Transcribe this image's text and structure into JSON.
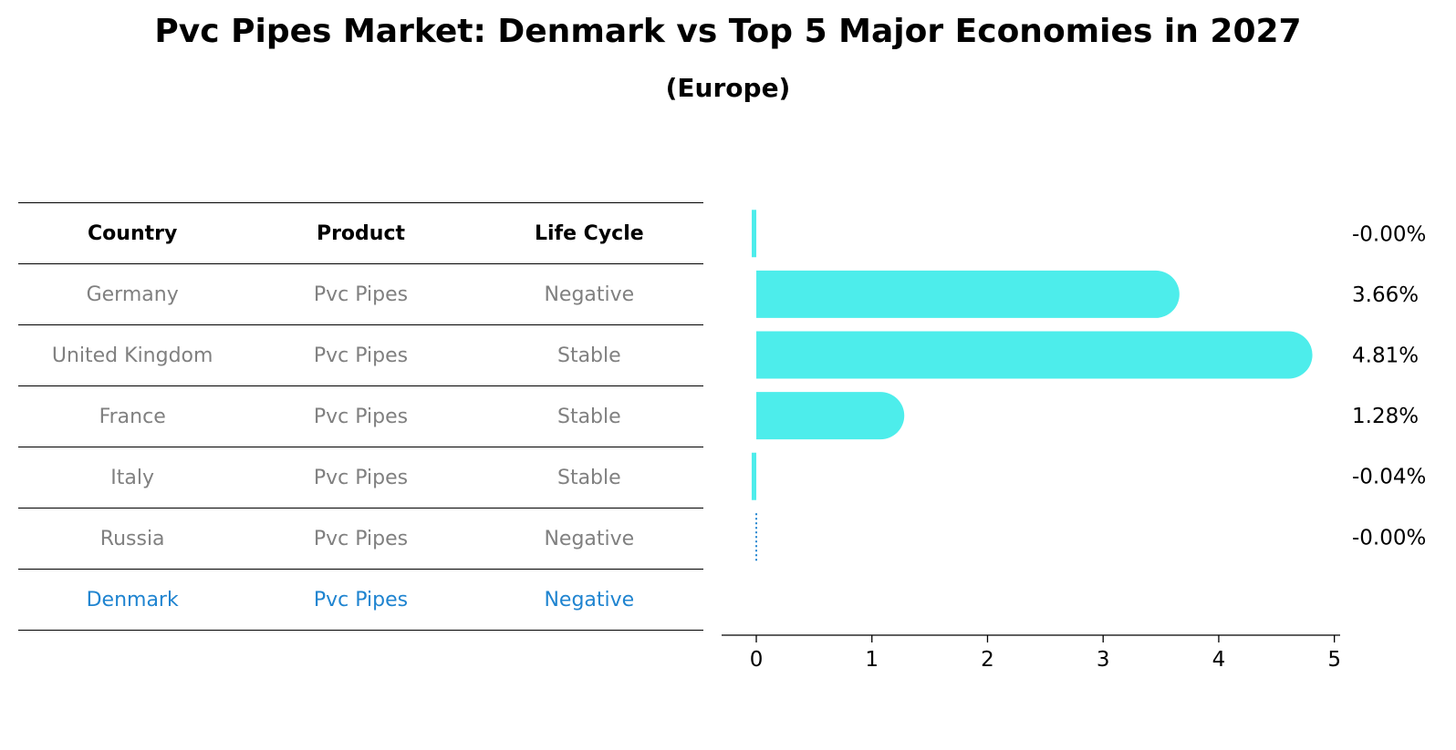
{
  "header": {
    "title": "Pvc Pipes Market: Denmark vs Top 5 Major Economies in 2027",
    "subtitle": "(Europe)"
  },
  "table": {
    "columns": [
      "Country",
      "Product",
      "Life Cycle"
    ],
    "rows": [
      {
        "country": "Germany",
        "product": "Pvc Pipes",
        "life_cycle": "Negative"
      },
      {
        "country": "United Kingdom",
        "product": "Pvc Pipes",
        "life_cycle": "Stable"
      },
      {
        "country": "France",
        "product": "Pvc Pipes",
        "life_cycle": "Stable"
      },
      {
        "country": "Italy",
        "product": "Pvc Pipes",
        "life_cycle": "Stable"
      },
      {
        "country": "Russia",
        "product": "Pvc Pipes",
        "life_cycle": "Negative"
      },
      {
        "country": "Denmark",
        "product": "Pvc Pipes",
        "life_cycle": "Negative"
      }
    ]
  },
  "colors": {
    "bar": "#4dedeb",
    "highlight": "#1f84d0",
    "muted_text": "#808080"
  },
  "chart_data": {
    "type": "bar",
    "orientation": "horizontal",
    "categories": [
      "Germany",
      "United Kingdom",
      "France",
      "Italy",
      "Russia",
      "Denmark"
    ],
    "values": [
      -0.001,
      3.66,
      4.81,
      1.28,
      -0.04,
      -0.001
    ],
    "value_labels": [
      "-0.00%",
      "3.66%",
      "4.81%",
      "1.28%",
      "-0.04%",
      "-0.00%"
    ],
    "xlim": [
      -0.3,
      5.05
    ],
    "xticks": [
      0,
      1,
      2,
      3,
      4,
      5
    ],
    "highlight_category": "Denmark",
    "grid": false,
    "legend": false
  }
}
